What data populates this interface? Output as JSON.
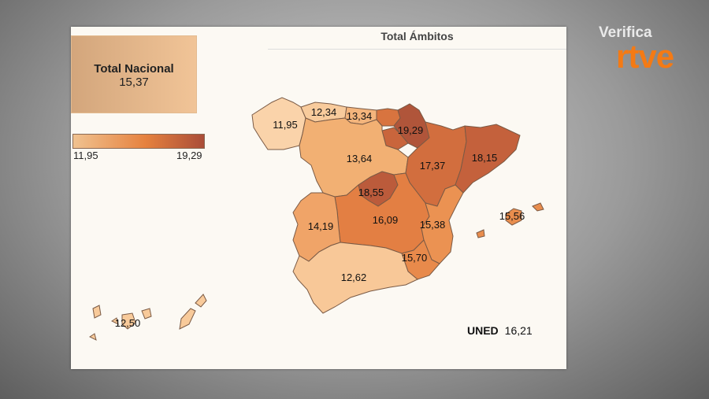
{
  "title": "Total Ámbitos",
  "total_nacional": {
    "label": "Total Nacional",
    "value": "15,37"
  },
  "legend": {
    "min": "11,95",
    "max": "19,29",
    "colors": [
      "#f0c290",
      "#e6823f",
      "#aa4d38"
    ]
  },
  "regions": [
    {
      "name": "Galicia",
      "value": "11,95",
      "color": "#fad3aa"
    },
    {
      "name": "Asturias",
      "value": "12,34",
      "color": "#f8cb9c"
    },
    {
      "name": "Cantabria",
      "value": "13,34",
      "color": "#f4b57c"
    },
    {
      "name": "Navarra",
      "value": "19,29",
      "color": "#b0553a"
    },
    {
      "name": "Castilla y León",
      "value": "13,64",
      "color": "#f2b073"
    },
    {
      "name": "Aragón",
      "value": "17,37",
      "color": "#d26e3e"
    },
    {
      "name": "Cataluña",
      "value": "18,15",
      "color": "#c4613c"
    },
    {
      "name": "Madrid",
      "value": "18,55",
      "color": "#bb5b3b"
    },
    {
      "name": "Castilla-La Mancha",
      "value": "16,09",
      "color": "#e37f43"
    },
    {
      "name": "Extremadura",
      "value": "14,19",
      "color": "#f0a468"
    },
    {
      "name": "Comunidad Valenciana",
      "value": "15,38",
      "color": "#eb9252"
    },
    {
      "name": "Murcia",
      "value": "15,70",
      "color": "#e88a4b"
    },
    {
      "name": "Andalucía",
      "value": "12,62",
      "color": "#f8c898"
    },
    {
      "name": "Baleares",
      "value": "15,56",
      "color": "#e98d4d"
    },
    {
      "name": "Canarias",
      "value": "12,50",
      "color": "#f8ca9a"
    }
  ],
  "other_regions_colors": {
    "pais_vasco": "#d8743f",
    "la_rioja": "#c9653c"
  },
  "uned": {
    "label": "UNED",
    "value": "16,21"
  },
  "logo": {
    "top": "Verifica",
    "brand": "rtve"
  }
}
